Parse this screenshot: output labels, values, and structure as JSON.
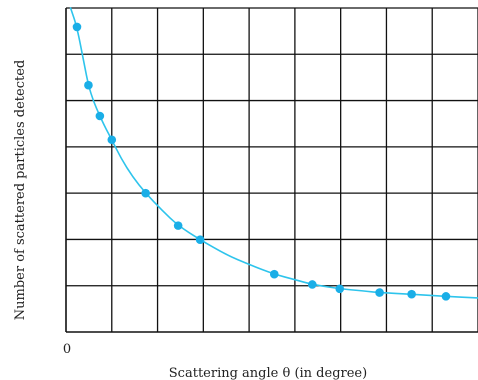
{
  "chart_data": {
    "type": "scatter",
    "title": "",
    "xlabel": "Scattering angle  θ (in degree)",
    "ylabel": "Number of  scattered particles detected",
    "x_origin_label": "0",
    "xlim": [
      0,
      9
    ],
    "ylim": [
      0,
      6
    ],
    "grid": true,
    "x_tick_labels_shown": false,
    "y_tick_labels_shown": false,
    "colors": {
      "grid": "#111111",
      "curve": "#2ec4ec",
      "points": "#1aaee7",
      "text": "#222222"
    },
    "series": [
      {
        "type": "points",
        "x": [
          0.24,
          0.49,
          0.74,
          1.0,
          1.74,
          2.45,
          2.93,
          4.55,
          5.38,
          5.98,
          6.85,
          7.55,
          8.3
        ],
        "y": [
          5.65,
          4.57,
          4.0,
          3.56,
          2.57,
          1.97,
          1.71,
          1.07,
          0.88,
          0.8,
          0.73,
          0.7,
          0.66
        ]
      },
      {
        "type": "curve",
        "x": [
          0.1,
          0.24,
          0.4,
          0.49,
          0.6,
          0.74,
          0.85,
          1.0,
          1.2,
          1.45,
          1.74,
          2.1,
          2.45,
          2.93,
          3.5,
          4.0,
          4.55,
          5.0,
          5.38,
          5.98,
          6.5,
          6.85,
          7.55,
          8.3,
          9.0
        ],
        "y": [
          6.0,
          5.65,
          4.95,
          4.57,
          4.27,
          4.0,
          3.8,
          3.56,
          3.22,
          2.88,
          2.57,
          2.25,
          1.97,
          1.71,
          1.43,
          1.25,
          1.07,
          0.97,
          0.88,
          0.8,
          0.76,
          0.73,
          0.7,
          0.66,
          0.63
        ]
      }
    ]
  }
}
